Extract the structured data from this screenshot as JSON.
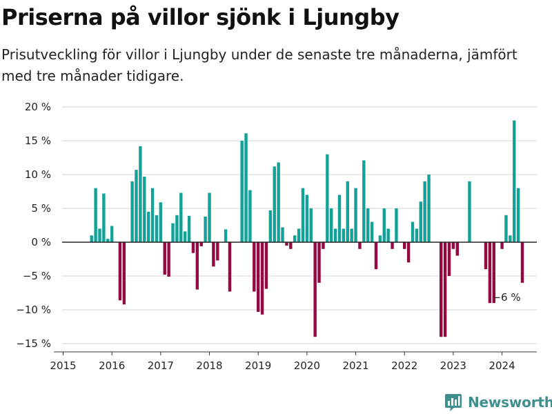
{
  "title": "Priserna på villor sjönk i Ljungby",
  "subtitle": "Prisutveckling för villor i Ljungby under de senaste tre månaderna, jämfört med tre månader tidigare.",
  "brand": "Newsworthy",
  "colors": {
    "positive": "#14a198",
    "negative": "#920a41",
    "brand": "#3f8f8e",
    "grid": "#d6d6d6"
  },
  "chart_data": {
    "type": "bar",
    "title": "Priserna på villor sjönk i Ljungby",
    "xlim": [
      2015,
      2024.65
    ],
    "ylim": [
      -15,
      20
    ],
    "yticks": [
      20,
      15,
      10,
      5,
      0,
      -5,
      -10,
      -15
    ],
    "ytick_labels": [
      "20 %",
      "15 %",
      "10 %",
      "5 %",
      "0 %",
      "−5 %",
      "−10 %",
      "−15 %"
    ],
    "xticks": [
      2015,
      2016,
      2017,
      2018,
      2019,
      2020,
      2021,
      2022,
      2023,
      2024
    ],
    "xtick_labels": [
      "2015",
      "2016",
      "2017",
      "2018",
      "2019",
      "2020",
      "2021",
      "2022",
      "2023",
      "2024"
    ],
    "grid": true,
    "bar_width_months": 0.75,
    "x_start": "2015-08",
    "values": [
      1,
      8,
      2,
      7.2,
      0.5,
      2.4,
      0,
      -8.6,
      -9.2,
      0,
      9,
      10.7,
      14.2,
      9.7,
      4.5,
      8,
      4,
      5.9,
      -4.8,
      -5.1,
      2.8,
      4,
      7.3,
      1.6,
      3.9,
      -1.6,
      -7,
      -0.6,
      3.8,
      7.3,
      -3.6,
      -2.7,
      0,
      1.9,
      -7.3,
      0,
      0,
      15,
      16.1,
      7.7,
      -7.3,
      -10.3,
      -10.7,
      -6.9,
      4.7,
      11.2,
      11.8,
      2.2,
      -0.5,
      -1,
      1,
      2,
      8,
      7,
      5,
      -14,
      -6,
      -1,
      13,
      5,
      2,
      7,
      2,
      9,
      2,
      8,
      -1,
      12.1,
      5,
      3,
      -4,
      1,
      5,
      2,
      -1,
      5,
      0,
      -1,
      -3,
      3,
      2,
      6,
      9,
      10,
      0,
      0,
      -14,
      -14,
      -5,
      -1,
      -2,
      0,
      0,
      9,
      0,
      0,
      0,
      -4,
      -9,
      -9,
      0,
      -1,
      4,
      1,
      18,
      8,
      -6
    ],
    "annotations": [
      {
        "x": "2024-02",
        "y": -6,
        "text": "−6 %"
      }
    ]
  }
}
